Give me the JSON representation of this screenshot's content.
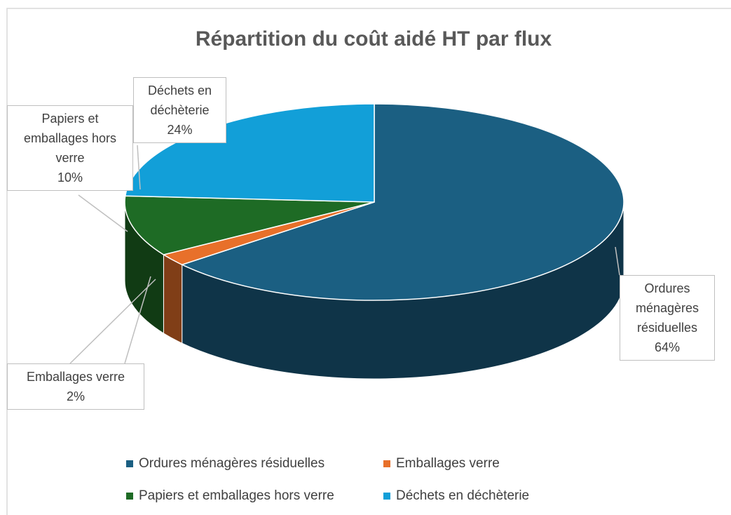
{
  "chart_data": {
    "type": "pie",
    "title": "Répartition du coût aidé HT par flux",
    "categories": [
      "Ordures ménagères résiduelles",
      "Emballages verre",
      "Papiers et emballages hors verre",
      "Déchets en déchèterie"
    ],
    "values": [
      64,
      2,
      10,
      24
    ],
    "value_labels": [
      "64%",
      "2%",
      "10%",
      "24%"
    ],
    "colors": [
      "#1b5f82",
      "#e8702a",
      "#1e6b25",
      "#129fd8"
    ],
    "legend": "bottom",
    "three_d": true
  }
}
